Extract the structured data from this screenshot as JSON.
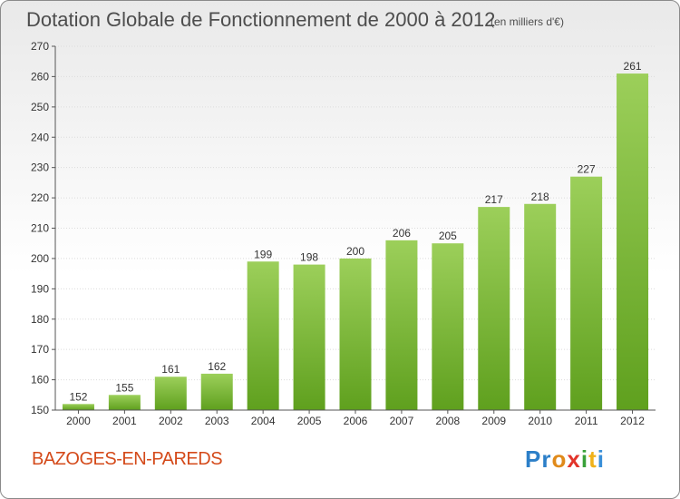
{
  "header": {
    "title": "Dotation Globale de Fonctionnement de 2000 à 2012",
    "subtitle": "(en milliers d'€)"
  },
  "footer": {
    "commune": "BAZOGES-EN-PAREDS",
    "logo": [
      "Pr",
      "o",
      "x",
      "i",
      "t",
      "i"
    ]
  },
  "colors": {
    "bar_top": "#9ccf5a",
    "bar_bottom": "#5fa01e",
    "title": "#4d4d4d",
    "commune": "#d44a1a"
  },
  "chart_data": {
    "type": "bar",
    "categories": [
      "2000",
      "2001",
      "2002",
      "2003",
      "2004",
      "2005",
      "2006",
      "2007",
      "2008",
      "2009",
      "2010",
      "2011",
      "2012"
    ],
    "values": [
      152,
      155,
      161,
      162,
      199,
      198,
      200,
      206,
      205,
      217,
      218,
      227,
      261
    ],
    "data_labels": [
      "152",
      "155",
      "161",
      "162",
      "199",
      "198",
      "200",
      "206",
      "205",
      "217",
      "218",
      "227",
      "261"
    ],
    "title": "Dotation Globale de Fonctionnement de 2000 à 2012",
    "subtitle": "(en milliers d'€)",
    "xlabel": "",
    "ylabel": "",
    "ylim": [
      150,
      270
    ],
    "yticks": [
      150,
      160,
      170,
      180,
      190,
      200,
      210,
      220,
      230,
      240,
      250,
      260,
      270
    ],
    "grid": true,
    "legend": "none"
  }
}
